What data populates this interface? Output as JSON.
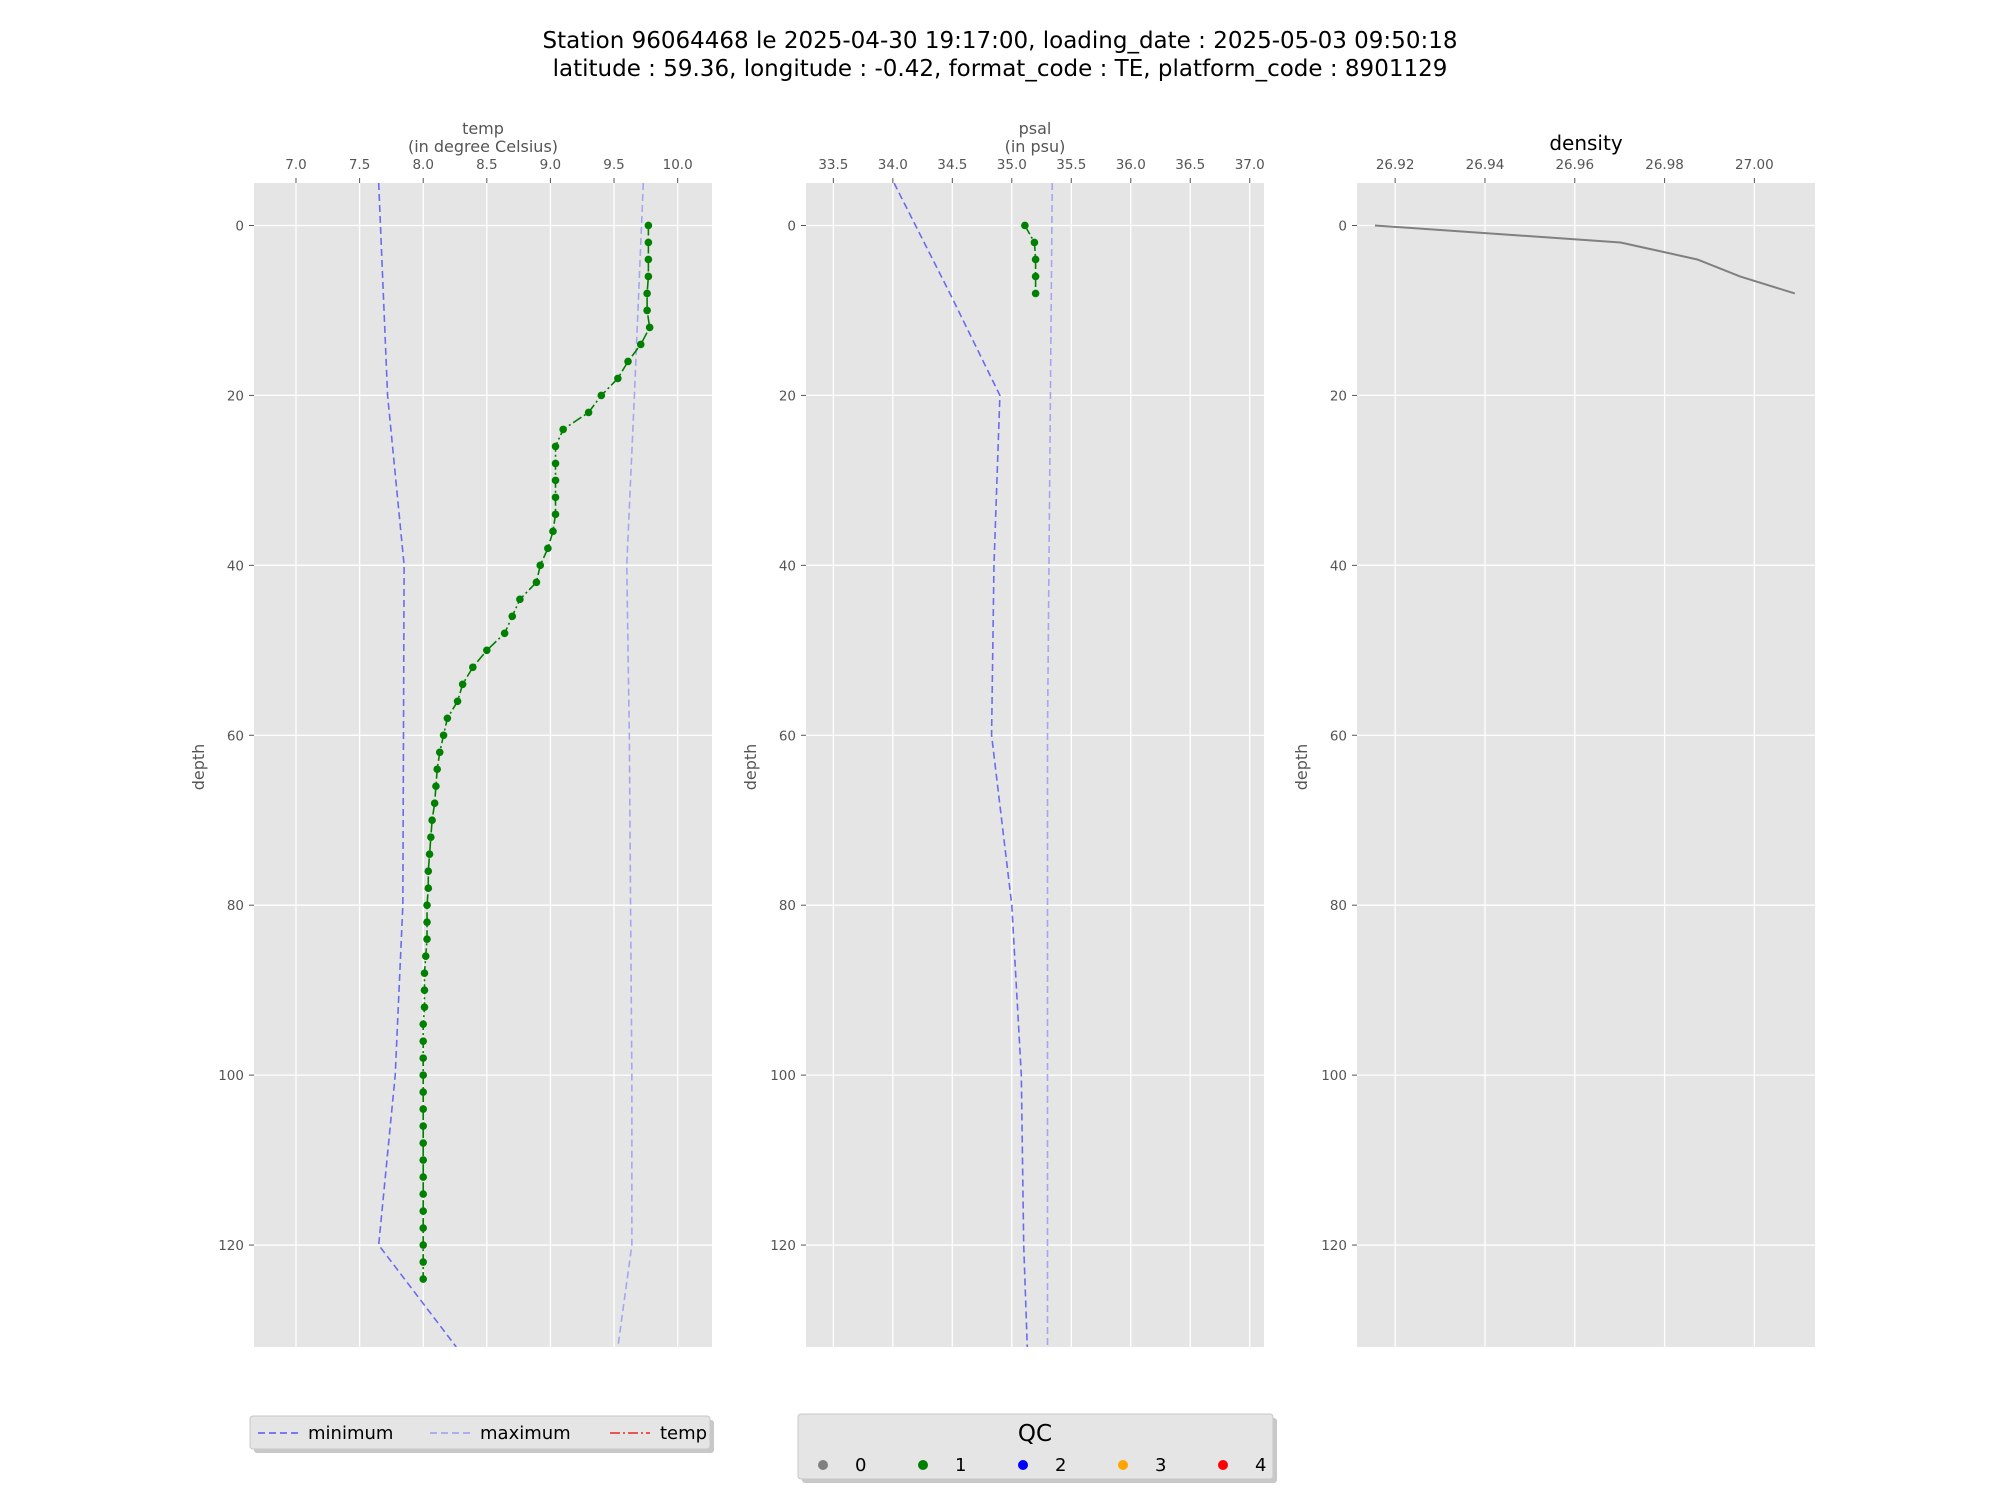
{
  "figure": {
    "title_line1": "Station 96064468 le 2025-04-30 19:17:00, loading_date : 2025-05-03 09:50:18",
    "title_line2": "latitude : 59.36, longitude : -0.42, format_code : TE, platform_code : 8901129"
  },
  "colors": {
    "panel_bg": "#e5e5e5",
    "grid": "#ffffff",
    "minimum": "#6b6bf0",
    "maximum": "#a6a6f0",
    "temp_legend": "#e8413a",
    "qc0": "#808080",
    "qc1": "#008000",
    "qc2": "#0000ff",
    "qc3": "#ffa500",
    "qc4": "#ff0000",
    "density_line": "#808080"
  },
  "chart_data": [
    {
      "type": "line",
      "xlabel": "temp",
      "xlabel_unit": "(in degree Celsius)",
      "ylabel": "depth",
      "xlim": [
        6.67,
        10.27
      ],
      "ylim": [
        132,
        -5
      ],
      "xticks": [
        "7.0",
        "7.5",
        "8.0",
        "8.5",
        "9.0",
        "9.5",
        "10.0"
      ],
      "xtick_values": [
        7.0,
        7.5,
        8.0,
        8.5,
        9.0,
        9.5,
        10.0
      ],
      "yticks": [
        "0",
        "20",
        "40",
        "60",
        "80",
        "100",
        "120"
      ],
      "ytick_values": [
        0,
        20,
        40,
        60,
        80,
        100,
        120
      ],
      "minimum": {
        "x": [
          7.65,
          7.72,
          7.85,
          7.84,
          7.78,
          7.65,
          8.26
        ],
        "y": [
          -5,
          20,
          40,
          80,
          100,
          120,
          132
        ]
      },
      "maximum": {
        "x": [
          9.73,
          9.66,
          9.6,
          9.62,
          9.64,
          9.64,
          9.53
        ],
        "y": [
          -5,
          20,
          40,
          60,
          100,
          120,
          132
        ]
      },
      "profile": {
        "qc": 1,
        "depth": [
          0,
          2,
          4,
          6,
          8,
          10,
          12,
          14,
          16,
          18,
          20,
          22,
          24,
          26,
          28,
          30,
          32,
          34,
          36,
          38,
          40,
          42,
          44,
          46,
          48,
          50,
          52,
          54,
          56,
          58,
          60,
          62,
          64,
          66,
          68,
          70,
          72,
          74,
          76,
          78,
          80,
          82,
          84,
          86,
          88,
          90,
          92,
          94,
          96,
          98,
          100,
          102,
          104,
          106,
          108,
          110,
          112,
          114,
          116,
          118,
          120,
          122,
          124
        ],
        "temp": [
          9.77,
          9.77,
          9.77,
          9.77,
          9.76,
          9.76,
          9.78,
          9.71,
          9.61,
          9.53,
          9.4,
          9.3,
          9.1,
          9.04,
          9.04,
          9.04,
          9.04,
          9.04,
          9.02,
          8.98,
          8.92,
          8.89,
          8.76,
          8.7,
          8.64,
          8.5,
          8.39,
          8.31,
          8.27,
          8.19,
          8.16,
          8.13,
          8.11,
          8.1,
          8.09,
          8.07,
          8.06,
          8.05,
          8.04,
          8.04,
          8.03,
          8.03,
          8.03,
          8.02,
          8.01,
          8.01,
          8.01,
          8.0,
          8.0,
          8.0,
          8.0,
          8.0,
          8.0,
          8.0,
          8.0,
          8.0,
          8.0,
          8.0,
          8.0,
          8.0,
          8.0,
          8.0,
          8.0
        ]
      }
    },
    {
      "type": "line",
      "xlabel": "psal",
      "xlabel_unit": "(in psu)",
      "ylabel": "depth",
      "xlim": [
        33.27,
        37.12
      ],
      "ylim": [
        132,
        -5
      ],
      "xticks": [
        "33.5",
        "34.0",
        "34.5",
        "35.0",
        "35.5",
        "36.0",
        "36.5",
        "37.0"
      ],
      "xtick_values": [
        33.5,
        34.0,
        34.5,
        35.0,
        35.5,
        36.0,
        36.5,
        37.0
      ],
      "yticks": [
        "0",
        "20",
        "40",
        "60",
        "80",
        "100",
        "120"
      ],
      "ytick_values": [
        0,
        20,
        40,
        60,
        80,
        100,
        120
      ],
      "minimum": {
        "x": [
          34.01,
          34.48,
          34.9,
          34.85,
          34.83,
          35.0,
          35.08,
          35.1,
          35.13
        ],
        "y": [
          -5,
          8,
          20,
          40,
          60,
          80,
          100,
          120,
          132
        ]
      },
      "maximum": {
        "x": [
          35.34,
          35.3,
          35.3
        ],
        "y": [
          -5,
          60,
          132
        ]
      },
      "profile": {
        "qc": 1,
        "depth": [
          0,
          2,
          4,
          6,
          8
        ],
        "psal": [
          35.11,
          35.19,
          35.2,
          35.2,
          35.2
        ]
      }
    },
    {
      "type": "line",
      "title": "density",
      "ylabel": "depth",
      "xlim": [
        26.9115,
        27.0135
      ],
      "ylim": [
        132,
        -5
      ],
      "xticks": [
        "26.92",
        "26.94",
        "26.96",
        "26.98",
        "27.00"
      ],
      "xtick_values": [
        26.92,
        26.94,
        26.96,
        26.98,
        27.0
      ],
      "yticks": [
        "0",
        "20",
        "40",
        "60",
        "80",
        "100",
        "120"
      ],
      "ytick_values": [
        0,
        20,
        40,
        60,
        80,
        100,
        120
      ],
      "series": {
        "depth": [
          0,
          2,
          4,
          6,
          8
        ],
        "density": [
          26.9155,
          26.9702,
          26.9873,
          26.9968,
          27.009
        ]
      }
    }
  ],
  "legend_lines": {
    "items": [
      {
        "label": "minimum",
        "style": "minimum"
      },
      {
        "label": "maximum",
        "style": "maximum"
      },
      {
        "label": "temp",
        "style": "temp"
      }
    ]
  },
  "legend_qc": {
    "title": "QC",
    "items": [
      {
        "label": "0",
        "color_key": "qc0"
      },
      {
        "label": "1",
        "color_key": "qc1"
      },
      {
        "label": "2",
        "color_key": "qc2"
      },
      {
        "label": "3",
        "color_key": "qc3"
      },
      {
        "label": "4",
        "color_key": "qc4"
      }
    ]
  }
}
